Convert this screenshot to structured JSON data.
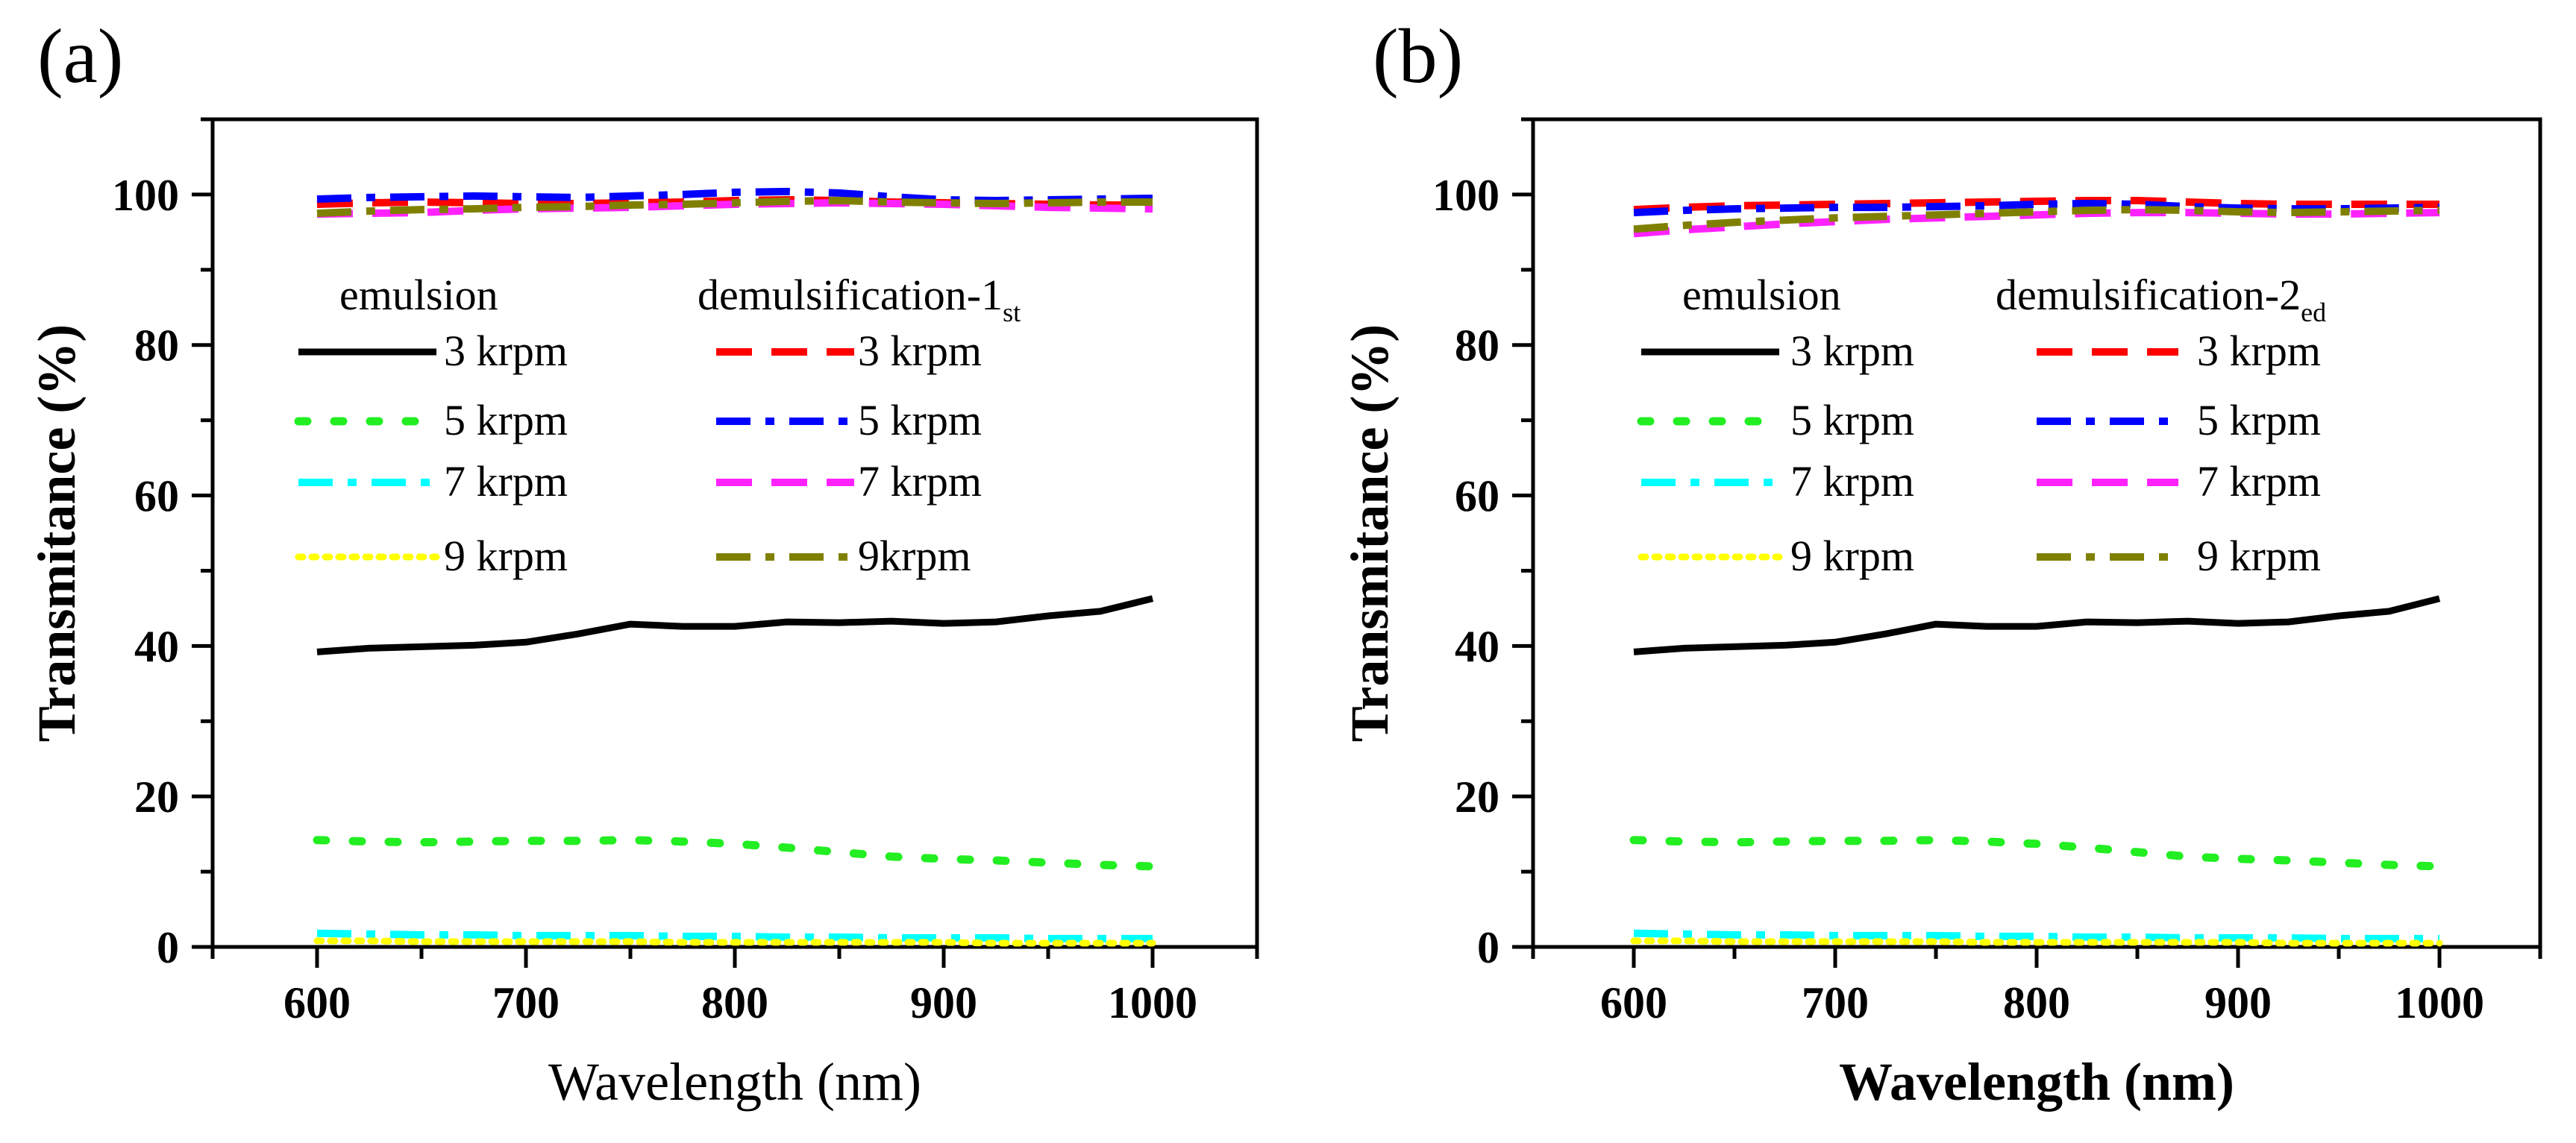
{
  "chart_data": [
    {
      "type": "line",
      "panel_label": "(a)",
      "xlabel": "Wavelength (nm)",
      "ylabel": "Transmitance (%)",
      "xlim": [
        550,
        1050
      ],
      "ylim": [
        0,
        110
      ],
      "xticks": [
        600,
        700,
        800,
        900,
        1000
      ],
      "yticks": [
        0,
        20,
        40,
        60,
        80,
        100
      ],
      "grid": false,
      "legend": {
        "placement": "upper-middle",
        "group_headers": [
          {
            "text": "emulsion"
          },
          {
            "text": "demulsification-1",
            "subscript": "st"
          }
        ],
        "entries": [
          {
            "series": "emulsion 3 krpm",
            "label": "3 krpm"
          },
          {
            "series": "emulsion 5 krpm",
            "label": "5 krpm"
          },
          {
            "series": "emulsion 7 krpm",
            "label": "7 krpm"
          },
          {
            "series": "emulsion 9 krpm",
            "label": "9 krpm"
          },
          {
            "series": "demulsification 3 krpm",
            "label": "3 krpm"
          },
          {
            "series": "demulsification 5 krpm",
            "label": "5 krpm"
          },
          {
            "series": "demulsification 7 krpm",
            "label": "7 krpm"
          },
          {
            "series": "demulsification 9 krpm",
            "label": "9krpm"
          }
        ]
      },
      "x": [
        600,
        625,
        650,
        675,
        700,
        725,
        750,
        775,
        800,
        825,
        850,
        875,
        900,
        925,
        950,
        975,
        1000
      ],
      "series": [
        {
          "name": "emulsion 3 krpm",
          "color": "#000000",
          "dash": "solid",
          "values": [
            39.2,
            39.7,
            39.9,
            40.1,
            40.5,
            41.6,
            42.9,
            42.6,
            42.6,
            43.2,
            43.1,
            43.3,
            43.0,
            43.2,
            44.0,
            44.6,
            46.3
          ]
        },
        {
          "name": "emulsion 5 krpm",
          "color": "#22ee22",
          "dash": "dot",
          "values": [
            14.2,
            14.0,
            13.9,
            14.0,
            14.1,
            14.1,
            14.2,
            14.0,
            13.7,
            13.2,
            12.6,
            12.0,
            11.7,
            11.5,
            11.2,
            10.9,
            10.7
          ]
        },
        {
          "name": "emulsion 7 krpm",
          "color": "#00ffff",
          "dash": "dashdot",
          "values": [
            1.8,
            1.7,
            1.6,
            1.6,
            1.5,
            1.5,
            1.5,
            1.4,
            1.4,
            1.3,
            1.3,
            1.2,
            1.2,
            1.2,
            1.1,
            1.1,
            1.1
          ]
        },
        {
          "name": "emulsion 9 krpm",
          "color": "#ffff00",
          "dash": "shortdot",
          "values": [
            0.8,
            0.8,
            0.7,
            0.7,
            0.7,
            0.7,
            0.7,
            0.6,
            0.6,
            0.6,
            0.6,
            0.6,
            0.6,
            0.5,
            0.5,
            0.5,
            0.5
          ]
        },
        {
          "name": "demulsification 3 krpm",
          "color": "#ff0000",
          "dash": "dash",
          "values": [
            98.7,
            98.9,
            99.0,
            98.9,
            98.8,
            98.8,
            98.9,
            99.0,
            99.2,
            99.3,
            99.2,
            99.0,
            98.9,
            98.8,
            98.7,
            98.6,
            98.6
          ]
        },
        {
          "name": "demulsification 5 krpm",
          "color": "#0000ff",
          "dash": "dashdot",
          "values": [
            99.4,
            99.6,
            99.7,
            99.8,
            99.7,
            99.6,
            99.8,
            100.0,
            100.3,
            100.4,
            100.2,
            99.7,
            99.3,
            99.2,
            99.3,
            99.4,
            99.5
          ]
        },
        {
          "name": "demulsification 7 krpm",
          "color": "#ff22ff",
          "dash": "dash",
          "values": [
            97.4,
            97.5,
            97.6,
            97.9,
            98.1,
            98.2,
            98.3,
            98.5,
            98.7,
            98.8,
            98.9,
            98.8,
            98.7,
            98.5,
            98.3,
            98.2,
            98.1
          ]
        },
        {
          "name": "demulsification 9 krpm",
          "color": "#808000",
          "dash": "dashdot",
          "values": [
            97.5,
            97.8,
            98.0,
            98.1,
            98.3,
            98.4,
            98.6,
            98.7,
            98.9,
            99.1,
            99.2,
            99.0,
            98.9,
            98.8,
            98.9,
            99.0,
            99.0
          ]
        }
      ]
    },
    {
      "type": "line",
      "panel_label": "(b)",
      "xlabel": "Wavelength (nm)",
      "ylabel": "Transmitance (%)",
      "xlim": [
        550,
        1050
      ],
      "ylim": [
        0,
        110
      ],
      "xticks": [
        600,
        700,
        800,
        900,
        1000
      ],
      "yticks": [
        0,
        20,
        40,
        60,
        80,
        100
      ],
      "grid": false,
      "legend": {
        "placement": "upper-middle",
        "group_headers": [
          {
            "text": "emulsion"
          },
          {
            "text": "demulsification-2",
            "subscript": "ed"
          }
        ],
        "entries": [
          {
            "series": "emulsion 3 krpm",
            "label": "3 krpm"
          },
          {
            "series": "emulsion 5 krpm",
            "label": "5 krpm"
          },
          {
            "series": "emulsion 7 krpm",
            "label": "7 krpm"
          },
          {
            "series": "emulsion 9 krpm",
            "label": "9 krpm"
          },
          {
            "series": "demulsification 3 krpm",
            "label": "3 krpm"
          },
          {
            "series": "demulsification 5 krpm",
            "label": "5 krpm"
          },
          {
            "series": "demulsification 7 krpm",
            "label": "7 krpm"
          },
          {
            "series": "demulsification 9 krpm",
            "label": "9 krpm"
          }
        ]
      },
      "x": [
        600,
        625,
        650,
        675,
        700,
        725,
        750,
        775,
        800,
        825,
        850,
        875,
        900,
        925,
        950,
        975,
        1000
      ],
      "series": [
        {
          "name": "emulsion 3 krpm",
          "color": "#000000",
          "dash": "solid",
          "values": [
            39.2,
            39.7,
            39.9,
            40.1,
            40.5,
            41.6,
            42.9,
            42.6,
            42.6,
            43.2,
            43.1,
            43.3,
            43.0,
            43.2,
            44.0,
            44.6,
            46.3
          ]
        },
        {
          "name": "emulsion 5 krpm",
          "color": "#22ee22",
          "dash": "dot",
          "values": [
            14.2,
            14.0,
            13.9,
            14.0,
            14.1,
            14.1,
            14.2,
            14.0,
            13.7,
            13.2,
            12.6,
            12.0,
            11.7,
            11.5,
            11.2,
            10.9,
            10.7
          ]
        },
        {
          "name": "emulsion 7 krpm",
          "color": "#00ffff",
          "dash": "dashdot",
          "values": [
            1.8,
            1.7,
            1.6,
            1.6,
            1.5,
            1.5,
            1.5,
            1.4,
            1.4,
            1.3,
            1.3,
            1.2,
            1.2,
            1.2,
            1.1,
            1.1,
            1.1
          ]
        },
        {
          "name": "emulsion 9 krpm",
          "color": "#ffff00",
          "dash": "shortdot",
          "values": [
            0.8,
            0.8,
            0.7,
            0.7,
            0.7,
            0.7,
            0.7,
            0.6,
            0.6,
            0.6,
            0.6,
            0.6,
            0.6,
            0.5,
            0.5,
            0.5,
            0.5
          ]
        },
        {
          "name": "demulsification 3 krpm",
          "color": "#ff0000",
          "dash": "dash",
          "values": [
            98.0,
            98.3,
            98.5,
            98.6,
            98.7,
            98.8,
            98.9,
            99.0,
            99.1,
            99.2,
            99.2,
            99.0,
            98.8,
            98.7,
            98.7,
            98.7,
            98.7
          ]
        },
        {
          "name": "demulsification 5 krpm",
          "color": "#0000ff",
          "dash": "dashdot",
          "values": [
            97.6,
            97.9,
            98.1,
            98.2,
            98.3,
            98.3,
            98.4,
            98.5,
            98.7,
            98.8,
            98.7,
            98.4,
            98.2,
            98.1,
            98.1,
            98.2,
            98.3
          ]
        },
        {
          "name": "demulsification 7 krpm",
          "color": "#ff22ff",
          "dash": "dash",
          "values": [
            94.8,
            95.3,
            95.7,
            96.1,
            96.4,
            96.7,
            96.9,
            97.1,
            97.3,
            97.5,
            97.6,
            97.6,
            97.5,
            97.4,
            97.4,
            97.5,
            97.6
          ]
        },
        {
          "name": "demulsification 9 krpm",
          "color": "#808000",
          "dash": "dashdot",
          "values": [
            95.4,
            95.9,
            96.3,
            96.6,
            96.9,
            97.1,
            97.3,
            97.5,
            97.7,
            97.9,
            98.0,
            97.9,
            97.7,
            97.6,
            97.7,
            97.8,
            97.9
          ]
        }
      ]
    }
  ]
}
